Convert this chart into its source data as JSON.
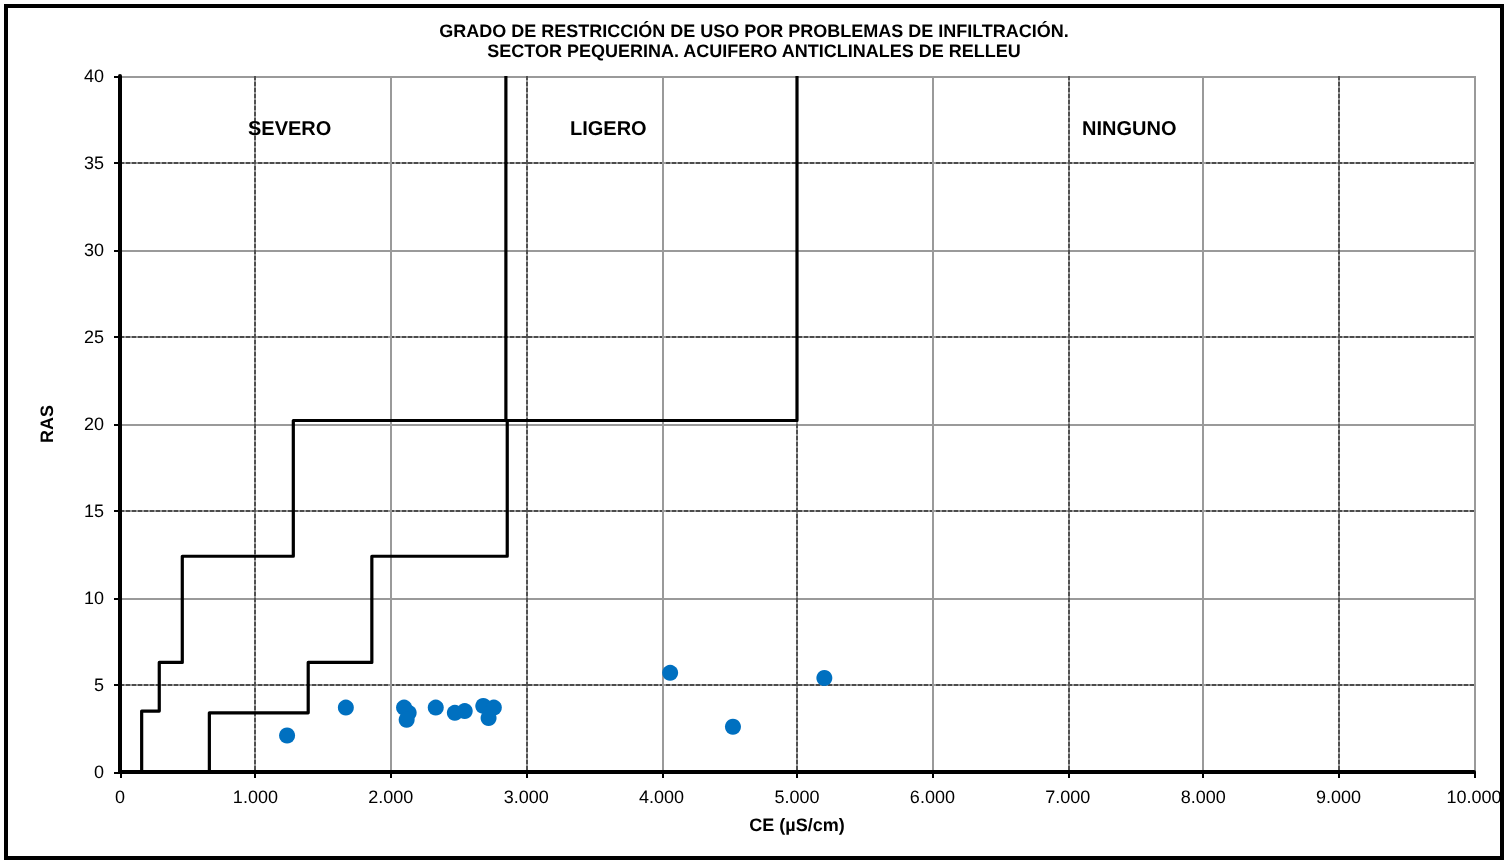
{
  "chart_data": {
    "type": "scatter",
    "title": "GRADO DE RESTRICCIÓN DE USO POR PROBLEMAS DE INFILTRACIÓN.",
    "subtitle": "SECTOR PEQUERINA. ACUIFERO ANTICLINALES DE RELLEU",
    "xlabel": "CE (µS/cm)",
    "ylabel": "RAS",
    "xlim": [
      0,
      10000
    ],
    "xticks": [
      0,
      {
        "value": 1000,
        "label": "1.000"
      },
      {
        "value": 2000,
        "label": "2.000"
      },
      {
        "value": 3000,
        "label": "3.000"
      },
      {
        "value": 4000,
        "label": "4.000"
      },
      {
        "value": 5000,
        "label": "5.000"
      },
      {
        "value": 6000,
        "label": "6.000"
      },
      {
        "value": 7000,
        "label": "7.000"
      },
      {
        "value": 8000,
        "label": "8.000"
      },
      {
        "value": 9000,
        "label": "9.000"
      },
      {
        "value": 10000,
        "label": "10.000"
      }
    ],
    "ylim": [
      0,
      40
    ],
    "yticks": [
      0,
      5,
      10,
      15,
      20,
      25,
      30,
      35,
      40
    ],
    "grid": true,
    "marker": "circle",
    "annotations": [
      "SEVERO",
      "LIGERO",
      "NINGUNO"
    ],
    "series": [
      {
        "type": "line",
        "color": "#000000",
        "marker": "none",
        "line_style": "solid",
        "x": [
          160,
          160,
          290,
          290,
          460,
          460,
          1280,
          1280,
          2850,
          2850
        ],
        "values": [
          0,
          3.5,
          3.5,
          6.3,
          6.3,
          12.4,
          12.4,
          20.2,
          20.2,
          40
        ]
      },
      {
        "type": "line",
        "color": "#000000",
        "marker": "none",
        "line_style": "solid",
        "x": [
          660,
          660,
          1390,
          1390,
          1860,
          1860,
          2860,
          2860,
          5000,
          5000
        ],
        "values": [
          0,
          3.4,
          3.4,
          6.3,
          6.3,
          12.4,
          12.4,
          20.2,
          20.2,
          40
        ]
      },
      {
        "type": "scatter",
        "color": "#0070c0",
        "x": [
          1234,
          1668,
          2098,
          2132,
          2117,
          2332,
          2473,
          2546,
          2683,
          2761,
          2722,
          4063,
          4527,
          5202
        ],
        "values": [
          2.1,
          3.7,
          3.7,
          3.4,
          3.0,
          3.7,
          3.4,
          3.5,
          3.8,
          3.7,
          3.1,
          5.7,
          2.6,
          5.4
        ]
      }
    ]
  }
}
